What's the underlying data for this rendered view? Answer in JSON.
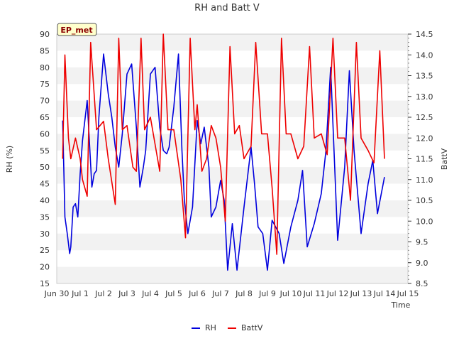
{
  "chart_data": {
    "type": "line",
    "title": "RH and Batt V",
    "badge": "EP_met",
    "xlabel": "Time",
    "ylabel_left": "RH (%)",
    "ylabel_right": "BattV",
    "grid": "horizontal bands",
    "legend_placement": "bottom-center",
    "x_unit": "days from Jun 30",
    "xlim": [
      0,
      15
    ],
    "x_ticks": [
      "Jun 30",
      "Jul 1",
      "Jul 2",
      "Jul 3",
      "Jul 4",
      "Jul 5",
      "Jul 6",
      "Jul 7",
      "Jul 8",
      "Jul 9",
      "Jul 10",
      "Jul 11",
      "Jul 12",
      "Jul 13",
      "Jul 14",
      "Jul 15"
    ],
    "ylim_left": [
      15,
      90
    ],
    "y_ticks_left": [
      "15",
      "20",
      "25",
      "30",
      "35",
      "40",
      "45",
      "50",
      "55",
      "60",
      "65",
      "70",
      "75",
      "80",
      "85",
      "90"
    ],
    "ylim_right": [
      8.5,
      14.5
    ],
    "y_ticks_right": [
      "8.5",
      "9.0",
      "9.5",
      "10.0",
      "10.5",
      "11.0",
      "11.5",
      "12.0",
      "12.5",
      "13.0",
      "13.5",
      "14.0",
      "14.5"
    ],
    "series": [
      {
        "name": "RH",
        "color": "#0000dd",
        "axis": "left",
        "x": [
          0.25,
          0.3,
          0.35,
          0.45,
          0.55,
          0.6,
          0.7,
          0.8,
          0.9,
          1.0,
          1.1,
          1.3,
          1.5,
          1.6,
          1.7,
          1.8,
          2.0,
          2.2,
          2.35,
          2.5,
          2.65,
          2.8,
          3.0,
          3.2,
          3.4,
          3.55,
          3.7,
          3.8,
          4.0,
          4.2,
          4.4,
          4.55,
          4.7,
          4.8,
          5.0,
          5.2,
          5.35,
          5.45,
          5.6,
          5.8,
          6.0,
          6.15,
          6.3,
          6.5,
          6.6,
          6.8,
          7.0,
          7.15,
          7.3,
          7.5,
          7.7,
          8.0,
          8.3,
          8.45,
          8.6,
          8.8,
          9.0,
          9.2,
          9.5,
          9.7,
          10.0,
          10.3,
          10.5,
          10.7,
          11.0,
          11.3,
          11.5,
          11.7,
          12.0,
          12.3,
          12.5,
          12.7,
          13.0,
          13.3,
          13.5,
          13.7,
          14.0
        ],
        "values": [
          64,
          50,
          35,
          30,
          24,
          26,
          38,
          39,
          35,
          48,
          58,
          70,
          44,
          48,
          49,
          65,
          84,
          72,
          65,
          56,
          50,
          60,
          78,
          81,
          62,
          44,
          50,
          55,
          78,
          80,
          62,
          55,
          54,
          56,
          68,
          84,
          55,
          40,
          30,
          38,
          64,
          57,
          62,
          50,
          35,
          38,
          46,
          40,
          19,
          33,
          19,
          38,
          56,
          45,
          32,
          30,
          19,
          34,
          30,
          21,
          32,
          40,
          49,
          26,
          33,
          42,
          55,
          80,
          28,
          50,
          79,
          55,
          30,
          45,
          52,
          36,
          47
        ]
      },
      {
        "name": "BattV",
        "color": "#ee0000",
        "axis": "right",
        "x": [
          0.25,
          0.35,
          0.5,
          0.6,
          0.8,
          1.0,
          1.1,
          1.3,
          1.45,
          1.7,
          2.0,
          2.2,
          2.5,
          2.65,
          2.8,
          3.0,
          3.25,
          3.4,
          3.6,
          3.75,
          4.0,
          4.4,
          4.55,
          4.75,
          5.0,
          5.3,
          5.5,
          5.7,
          5.9,
          6.0,
          6.2,
          6.4,
          6.6,
          6.8,
          7.0,
          7.2,
          7.4,
          7.6,
          7.8,
          8.0,
          8.3,
          8.5,
          8.75,
          9.0,
          9.2,
          9.4,
          9.6,
          9.8,
          10.0,
          10.3,
          10.55,
          10.8,
          11.0,
          11.3,
          11.55,
          11.8,
          12.0,
          12.3,
          12.55,
          12.8,
          13.0,
          13.3,
          13.55,
          13.8,
          14.0
        ],
        "values": [
          11.5,
          14.0,
          12.0,
          11.5,
          12.0,
          11.5,
          11.0,
          10.6,
          14.3,
          12.2,
          12.4,
          11.5,
          10.4,
          14.4,
          12.2,
          12.3,
          11.3,
          11.2,
          14.4,
          12.2,
          12.5,
          11.2,
          14.5,
          12.2,
          12.2,
          11.0,
          9.6,
          14.4,
          12.2,
          12.8,
          11.2,
          11.5,
          12.3,
          12.0,
          11.3,
          10.0,
          14.2,
          12.1,
          12.3,
          11.5,
          11.8,
          14.3,
          12.1,
          12.1,
          10.8,
          9.2,
          14.4,
          12.1,
          12.1,
          11.5,
          11.8,
          14.2,
          12.0,
          12.1,
          11.6,
          14.4,
          12.0,
          12.0,
          10.5,
          14.3,
          12.0,
          11.7,
          11.4,
          14.1,
          11.5
        ]
      }
    ]
  }
}
